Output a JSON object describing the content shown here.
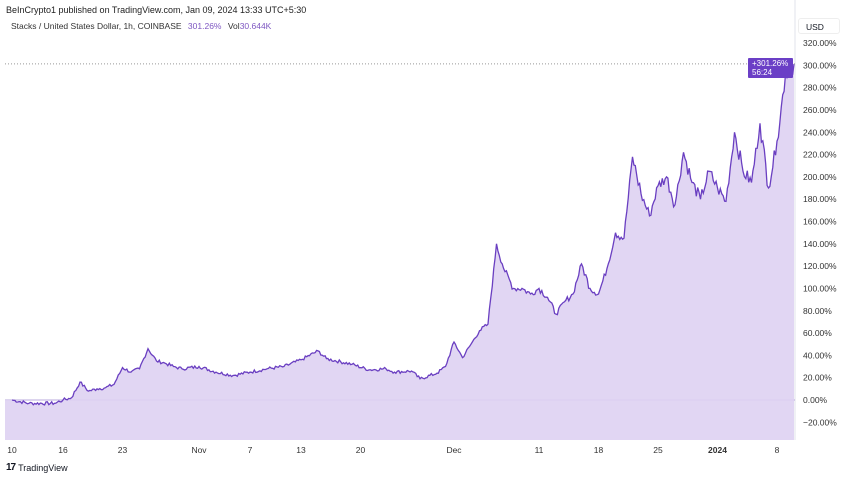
{
  "header": {
    "published": "BeInCrypto1 published on TradingView.com, Jan 09, 2024 13:33 UTC+5:30"
  },
  "legend": {
    "symbol": "Stacks / United States Dollar, 1h, COINBASE",
    "change": "301.26%",
    "vol_label": "Vol",
    "vol_value": "30.644K"
  },
  "currency": "USD",
  "price_tag": {
    "value": "+301.26%",
    "countdown": "56:24"
  },
  "footer": {
    "brand": "TradingView"
  },
  "colors": {
    "line": "#6a3fc1",
    "fill": "#ded2f2",
    "accent": "#7e57c2"
  },
  "chart_data": {
    "type": "area",
    "title": "Stacks / United States Dollar, 1h, COINBASE",
    "xlabel": "",
    "ylabel": "% change",
    "x_unit": "days since Oct 10, 2023",
    "xlim": [
      -1,
      93
    ],
    "ylim": [
      -37,
      345
    ],
    "yticks": [
      -20,
      0,
      20,
      40,
      60,
      80,
      100,
      120,
      140,
      160,
      180,
      200,
      220,
      240,
      260,
      280,
      300,
      320
    ],
    "ytick_labels": [
      "−20.00%",
      "0.00%",
      "20.00%",
      "40.00%",
      "60.00%",
      "80.00%",
      "100.00%",
      "120.00%",
      "140.00%",
      "160.00%",
      "180.00%",
      "200.00%",
      "220.00%",
      "240.00%",
      "260.00%",
      "280.00%",
      "300.00%",
      "320.00%"
    ],
    "xticks": [
      {
        "x": 0,
        "label": "10"
      },
      {
        "x": 6,
        "label": "16"
      },
      {
        "x": 13,
        "label": "23"
      },
      {
        "x": 22,
        "label": "Nov"
      },
      {
        "x": 28,
        "label": "7"
      },
      {
        "x": 34,
        "label": "13"
      },
      {
        "x": 41,
        "label": "20"
      },
      {
        "x": 52,
        "label": "Dec"
      },
      {
        "x": 62,
        "label": "11"
      },
      {
        "x": 69,
        "label": "18"
      },
      {
        "x": 76,
        "label": "25"
      },
      {
        "x": 83,
        "label": "2024"
      },
      {
        "x": 90,
        "label": "8"
      }
    ],
    "grid": false,
    "x": [
      0,
      2,
      5,
      6,
      7,
      8,
      9,
      10,
      11,
      12,
      13,
      14,
      15,
      16,
      17,
      18,
      19,
      20,
      22,
      24,
      26,
      28,
      30,
      32,
      34,
      36,
      37,
      40,
      42,
      44,
      45,
      47,
      48,
      50,
      51,
      52,
      53,
      54,
      55,
      56,
      57,
      58,
      59,
      60,
      61,
      62,
      63,
      64,
      65,
      66,
      67,
      68,
      69,
      70,
      71,
      72,
      73,
      74,
      75,
      76,
      77,
      78,
      79,
      80,
      81,
      82,
      83,
      84,
      85,
      86,
      87,
      88,
      89,
      90,
      91,
      92
    ],
    "values": [
      0,
      -3,
      -3,
      0,
      2,
      16,
      8,
      10,
      11,
      14,
      29,
      25,
      28,
      46,
      35,
      33,
      30,
      28,
      30,
      25,
      22,
      25,
      28,
      30,
      36,
      44,
      37,
      32,
      27,
      28,
      25,
      26,
      19,
      24,
      30,
      52,
      38,
      50,
      62,
      68,
      140,
      115,
      100,
      100,
      95,
      100,
      92,
      77,
      88,
      95,
      122,
      100,
      95,
      118,
      150,
      145,
      218,
      185,
      165,
      192,
      200,
      175,
      222,
      195,
      180,
      205,
      190,
      178,
      240,
      205,
      195,
      248,
      190,
      232,
      292,
      301.26
    ],
    "last_value": 301.26
  }
}
